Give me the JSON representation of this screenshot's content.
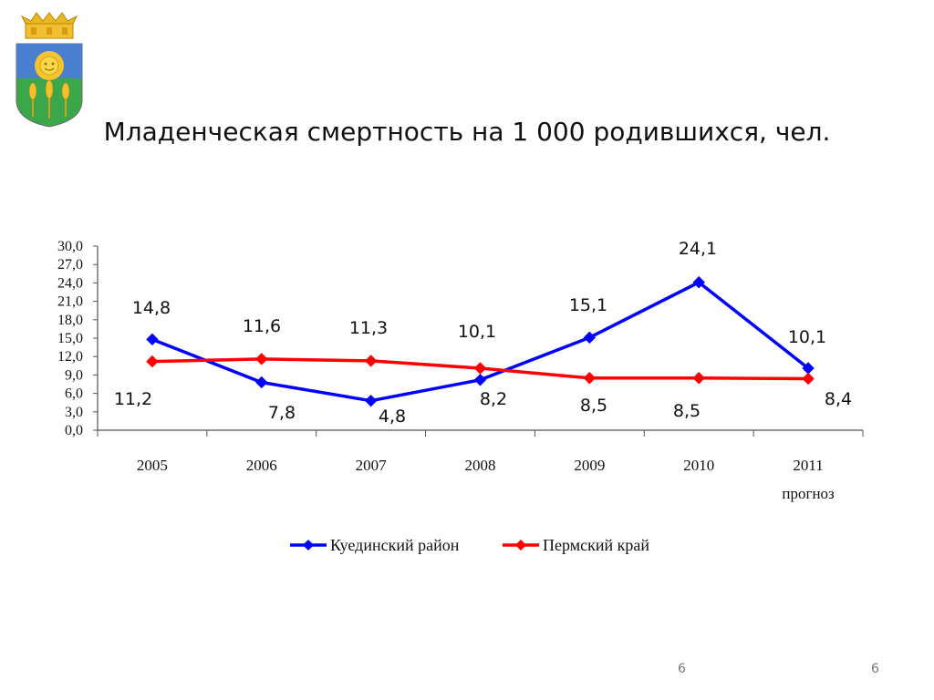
{
  "slide": {
    "title": "Младенческая смертность на 1 000 родившихся, чел.",
    "page_number_left": "6",
    "page_number_right": "6"
  },
  "chart_data": {
    "type": "line",
    "title": "Младенческая смертность на 1 000 родившихся, чел.",
    "xlabel": "",
    "ylabel": "",
    "categories": [
      "2005",
      "2006",
      "2007",
      "2008",
      "2009",
      "2010",
      "2011"
    ],
    "category_sublabels": [
      "",
      "",
      "",
      "",
      "",
      "",
      "прогноз"
    ],
    "ylim": [
      0,
      30
    ],
    "yticks": [
      "0,0",
      "3,0",
      "6,0",
      "9,0",
      "12,0",
      "15,0",
      "18,0",
      "21,0",
      "24,0",
      "27,0",
      "30,0"
    ],
    "grid": false,
    "legend_position": "bottom",
    "series": [
      {
        "name": "Куединский  район",
        "color": "#0000ff",
        "values": [
          14.8,
          7.8,
          4.8,
          8.2,
          15.1,
          24.1,
          10.1
        ],
        "labels": [
          "14,8",
          "7,8",
          "4,8",
          "8,2",
          "15,1",
          "24,1",
          "10,1"
        ]
      },
      {
        "name": "Пермский край",
        "color": "#ff0000",
        "values": [
          11.2,
          11.6,
          11.3,
          10.1,
          8.5,
          8.5,
          8.4
        ],
        "labels": [
          "11,2",
          "11,6",
          "11,3",
          "10,1",
          "8,5",
          "8,5",
          "8,4"
        ]
      }
    ]
  }
}
